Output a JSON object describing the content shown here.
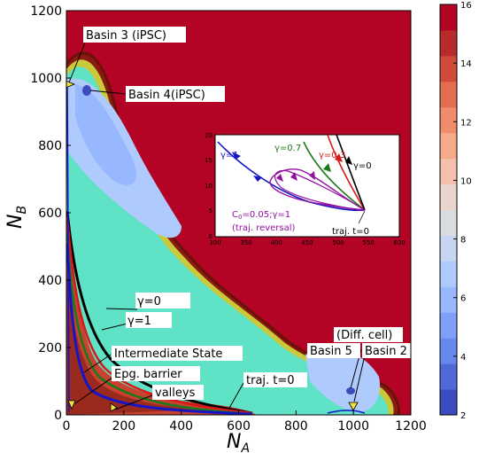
{
  "chart_data": {
    "type": "heatmap",
    "xlabel": "N",
    "xlabel_sub": "A",
    "ylabel": "N",
    "ylabel_sub": "B",
    "xlim": [
      0,
      1200
    ],
    "ylim": [
      0,
      1200
    ],
    "x_ticks": [
      "0",
      "200",
      "400",
      "600",
      "800",
      "1000",
      "1200"
    ],
    "y_ticks": [
      "0",
      "200",
      "400",
      "600",
      "800",
      "1000",
      "1200"
    ],
    "colorbar": {
      "min": 2,
      "max": 16,
      "ticks": [
        "2",
        "4",
        "6",
        "8",
        "10",
        "12",
        "14",
        "16"
      ],
      "colors": [
        "#3b4cc0",
        "#4f69d9",
        "#6687ed",
        "#7fa0f8",
        "#97b8ff",
        "#afcafc",
        "#c5d5f2",
        "#d9dce1",
        "#e9d5cb",
        "#f3c0ab",
        "#f6a98b",
        "#f08c6c",
        "#e36c51",
        "#d04b3a",
        "#b72c2a",
        "#b40426"
      ]
    },
    "annotations": [
      {
        "label": "Basin 3 (iPSC)",
        "x": 10,
        "y": 980
      },
      {
        "label": "Basin 4(iPSC)",
        "x": 90,
        "y": 960
      },
      {
        "label": "γ=0",
        "x": 200,
        "y": 330
      },
      {
        "label": "γ=1",
        "x": 200,
        "y": 260
      },
      {
        "label": "Intermediate State",
        "x": 170,
        "y": 170
      },
      {
        "label": "Epg. barrier",
        "x": 170,
        "y": 120
      },
      {
        "label": "valleys",
        "x": 220,
        "y": 60
      },
      {
        "label": "traj. t=0",
        "x": 550,
        "y": 10
      },
      {
        "label": "(Diff. cell)",
        "x": 970,
        "y": 60
      },
      {
        "label": "Basin 5",
        "x": 960,
        "y": 60
      },
      {
        "label": "Basin 2",
        "x": 980,
        "y": 20
      }
    ],
    "inset": {
      "xlim": [
        300,
        600
      ],
      "ylim": [
        0,
        20
      ],
      "x_ticks": [
        "300",
        "350",
        "400",
        "450",
        "500",
        "550",
        "600"
      ],
      "y_ticks": [
        "0",
        "5",
        "10",
        "15",
        "20"
      ],
      "series": [
        {
          "name": "γ=1",
          "color": "#1515c8"
        },
        {
          "name": "γ=0.7",
          "color": "#1a7a1a"
        },
        {
          "name": "γ=0.3",
          "color": "#d81818"
        },
        {
          "name": "γ=0",
          "color": "#000000"
        },
        {
          "name": "C0=0.05;γ=1",
          "color": "#9010a0"
        }
      ],
      "labels": {
        "gamma1": "γ=1",
        "gamma07": "γ=0.7",
        "gamma03": "γ=0.3",
        "gamma0": "γ=0",
        "c0": "C",
        "c0_sub": "0",
        "c0_rest": "=0.05;γ=1",
        "reversal": "(traj. reversal)",
        "t0": "traj. t=0"
      }
    }
  }
}
